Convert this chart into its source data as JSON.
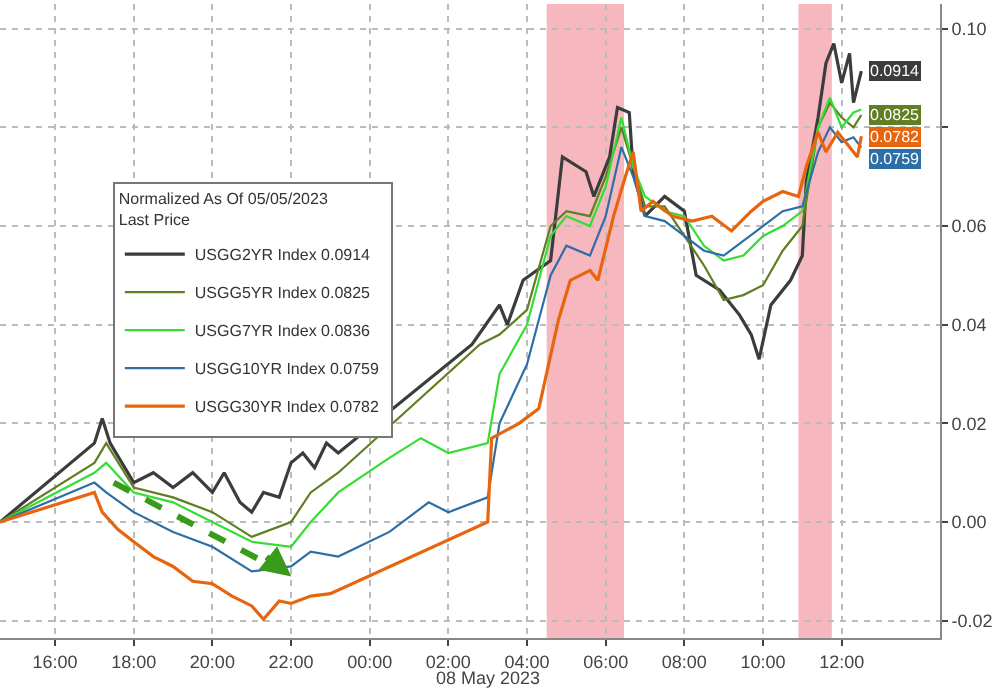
{
  "chart_data": {
    "type": "line",
    "legend_title": "Normalized As Of 05/05/2023\nLast Price",
    "annotations": [
      "08 May 2023"
    ],
    "xlim": [
      "2023-05-07T14:36",
      "2023-05-08T14:30"
    ],
    "xticks": [
      {
        "value": "2023-05-07T16:00",
        "label": "16:00"
      },
      {
        "value": "2023-05-07T18:00",
        "label": "18:00"
      },
      {
        "value": "2023-05-07T20:00",
        "label": "20:00"
      },
      {
        "value": "2023-05-07T22:00",
        "label": "22:00"
      },
      {
        "value": "2023-05-08T00:00",
        "label": "00:00"
      },
      {
        "value": "2023-05-08T02:00",
        "label": "02:00"
      },
      {
        "value": "2023-05-08T04:00",
        "label": "04:00"
      },
      {
        "value": "2023-05-08T06:00",
        "label": "06:00"
      },
      {
        "value": "2023-05-08T08:00",
        "label": "08:00"
      },
      {
        "value": "2023-05-08T10:00",
        "label": "10:00"
      },
      {
        "value": "2023-05-08T12:00",
        "label": "12:00"
      }
    ],
    "ylim": [
      -0.0235,
      0.105
    ],
    "yticks": [
      -0.02,
      {
        "value": 0,
        "label": "0.00"
      },
      0.02,
      0.04,
      0.06,
      {
        "value": 0.08,
        "label": null
      },
      {
        "value": 0.1,
        "label": "0.10"
      }
    ],
    "grid": true,
    "legend": "left",
    "marker": "none",
    "line_style": "solid",
    "bands": [
      {
        "axis": "x",
        "from": "2023-05-08T04:30",
        "to": "2023-05-08T06:28",
        "color": "#f4a6ae"
      },
      {
        "axis": "x",
        "from": "2023-05-08T10:54",
        "to": "2023-05-08T11:45",
        "color": "#f4a6ae"
      }
    ],
    "series": [
      {
        "name": "USGG2YR Index 0.0914",
        "color": "#3c3c3c",
        "x": [
          "2023-05-07T14:36",
          "2023-05-07T17:00",
          "2023-05-07T17:12",
          "2023-05-07T17:24",
          "2023-05-07T17:42",
          "2023-05-07T18:00",
          "2023-05-07T18:30",
          "2023-05-07T19:00",
          "2023-05-07T19:30",
          "2023-05-07T20:00",
          "2023-05-07T20:18",
          "2023-05-07T20:42",
          "2023-05-07T21:00",
          "2023-05-07T21:18",
          "2023-05-07T21:42",
          "2023-05-07T22:00",
          "2023-05-07T22:18",
          "2023-05-07T22:36",
          "2023-05-07T22:54",
          "2023-05-07T23:12",
          "2023-05-08T02:36",
          "2023-05-08T03:18",
          "2023-05-08T03:30",
          "2023-05-08T03:54",
          "2023-05-08T04:36",
          "2023-05-08T04:54",
          "2023-05-08T05:30",
          "2023-05-08T05:42",
          "2023-05-08T06:06",
          "2023-05-08T06:18",
          "2023-05-08T06:36",
          "2023-05-08T06:42",
          "2023-05-08T07:00",
          "2023-05-08T07:30",
          "2023-05-08T08:00",
          "2023-05-08T08:18",
          "2023-05-08T08:54",
          "2023-05-08T09:24",
          "2023-05-08T09:42",
          "2023-05-08T09:54",
          "2023-05-08T10:12",
          "2023-05-08T10:42",
          "2023-05-08T11:00",
          "2023-05-08T11:06",
          "2023-05-08T11:24",
          "2023-05-08T11:36",
          "2023-05-08T11:48",
          "2023-05-08T12:00",
          "2023-05-08T12:12",
          "2023-05-08T12:18",
          "2023-05-08T12:30"
        ],
        "values": [
          0,
          0.016,
          0.021,
          0.016,
          0.012,
          0.008,
          0.01,
          0.007,
          0.01,
          0.006,
          0.01,
          0.004,
          0.002,
          0.006,
          0.005,
          0.012,
          0.014,
          0.011,
          0.016,
          0.014,
          0.036,
          0.044,
          0.04,
          0.049,
          0.053,
          0.074,
          0.071,
          0.066,
          0.074,
          0.084,
          0.083,
          0.071,
          0.062,
          0.066,
          0.063,
          0.05,
          0.047,
          0.042,
          0.038,
          0.033,
          0.044,
          0.049,
          0.054,
          0.069,
          0.082,
          0.093,
          0.097,
          0.089,
          0.095,
          0.085,
          0.0914
        ],
        "value_labels": [
          null,
          null,
          null,
          null,
          null,
          null,
          null,
          null,
          null,
          null,
          null,
          null,
          null,
          null,
          null,
          null,
          null,
          null,
          null,
          null,
          null,
          null,
          null,
          null,
          null,
          null,
          null,
          null,
          null,
          null,
          null,
          null,
          null,
          null,
          null,
          null,
          null,
          null,
          null,
          null,
          null,
          null,
          null,
          null,
          null,
          null,
          null,
          null,
          null,
          null,
          "0.0914"
        ]
      },
      {
        "name": "USGG5YR Index 0.0825",
        "color": "#5f7f22",
        "x": [
          "2023-05-07T14:36",
          "2023-05-07T17:00",
          "2023-05-07T17:18",
          "2023-05-07T18:00",
          "2023-05-07T19:00",
          "2023-05-07T20:00",
          "2023-05-07T21:00",
          "2023-05-07T22:00",
          "2023-05-07T22:30",
          "2023-05-07T23:12",
          "2023-05-08T02:48",
          "2023-05-08T03:18",
          "2023-05-08T04:00",
          "2023-05-08T04:36",
          "2023-05-08T05:00",
          "2023-05-08T05:36",
          "2023-05-08T06:00",
          "2023-05-08T06:24",
          "2023-05-08T06:42",
          "2023-05-08T07:00",
          "2023-05-08T07:30",
          "2023-05-08T08:00",
          "2023-05-08T08:30",
          "2023-05-08T09:00",
          "2023-05-08T09:30",
          "2023-05-08T10:00",
          "2023-05-08T10:30",
          "2023-05-08T11:00",
          "2023-05-08T11:24",
          "2023-05-08T11:42",
          "2023-05-08T12:00",
          "2023-05-08T12:18",
          "2023-05-08T12:30"
        ],
        "values": [
          0,
          0.012,
          0.016,
          0.007,
          0.005,
          0.002,
          -0.003,
          0.0,
          0.006,
          0.01,
          0.036,
          0.038,
          0.043,
          0.06,
          0.063,
          0.062,
          0.07,
          0.08,
          0.072,
          0.064,
          0.064,
          0.058,
          0.052,
          0.045,
          0.046,
          0.048,
          0.055,
          0.06,
          0.08,
          0.085,
          0.082,
          0.08,
          0.0825
        ],
        "value_labels": [
          null,
          null,
          null,
          null,
          null,
          null,
          null,
          null,
          null,
          null,
          null,
          null,
          null,
          null,
          null,
          null,
          null,
          null,
          null,
          null,
          null,
          null,
          null,
          null,
          null,
          null,
          null,
          null,
          null,
          null,
          null,
          null,
          "0.0825"
        ]
      },
      {
        "name": "USGG7YR Index 0.0836",
        "color": "#33dd33",
        "x": [
          "2023-05-07T14:36",
          "2023-05-07T17:00",
          "2023-05-07T17:18",
          "2023-05-07T18:00",
          "2023-05-07T19:00",
          "2023-05-07T20:00",
          "2023-05-07T21:00",
          "2023-05-07T22:00",
          "2023-05-07T22:30",
          "2023-05-07T23:12",
          "2023-05-08T00:30",
          "2023-05-08T01:18",
          "2023-05-08T02:00",
          "2023-05-08T03:00",
          "2023-05-08T03:18",
          "2023-05-08T04:00",
          "2023-05-08T04:36",
          "2023-05-08T05:00",
          "2023-05-08T05:36",
          "2023-05-08T06:00",
          "2023-05-08T06:24",
          "2023-05-08T06:42",
          "2023-05-08T07:00",
          "2023-05-08T07:30",
          "2023-05-08T08:00",
          "2023-05-08T08:30",
          "2023-05-08T09:00",
          "2023-05-08T09:30",
          "2023-05-08T10:00",
          "2023-05-08T10:30",
          "2023-05-08T11:00",
          "2023-05-08T11:24",
          "2023-05-08T11:42",
          "2023-05-08T12:00",
          "2023-05-08T12:18",
          "2023-05-08T12:30"
        ],
        "values": [
          0,
          0.01,
          0.012,
          0.006,
          0.004,
          0.0,
          -0.004,
          -0.005,
          0.0,
          0.006,
          0.013,
          0.017,
          0.014,
          0.016,
          0.03,
          0.04,
          0.058,
          0.062,
          0.06,
          0.068,
          0.082,
          0.072,
          0.066,
          0.063,
          0.062,
          0.056,
          0.053,
          0.054,
          0.058,
          0.06,
          0.063,
          0.08,
          0.086,
          0.08,
          0.083,
          0.0836
        ]
      },
      {
        "name": "USGG10YR Index 0.0759",
        "color": "#2e6ea6",
        "x": [
          "2023-05-07T14:36",
          "2023-05-07T17:00",
          "2023-05-07T17:18",
          "2023-05-07T18:00",
          "2023-05-07T19:00",
          "2023-05-07T20:00",
          "2023-05-07T21:00",
          "2023-05-07T22:00",
          "2023-05-07T22:30",
          "2023-05-07T23:12",
          "2023-05-08T00:30",
          "2023-05-08T01:30",
          "2023-05-08T02:00",
          "2023-05-08T03:00",
          "2023-05-08T03:18",
          "2023-05-08T04:00",
          "2023-05-08T04:36",
          "2023-05-08T05:00",
          "2023-05-08T05:36",
          "2023-05-08T06:00",
          "2023-05-08T06:24",
          "2023-05-08T06:42",
          "2023-05-08T07:00",
          "2023-05-08T07:30",
          "2023-05-08T08:00",
          "2023-05-08T08:30",
          "2023-05-08T09:00",
          "2023-05-08T09:30",
          "2023-05-08T10:00",
          "2023-05-08T10:30",
          "2023-05-08T11:00",
          "2023-05-08T11:24",
          "2023-05-08T11:42",
          "2023-05-08T12:00",
          "2023-05-08T12:18",
          "2023-05-08T12:30"
        ],
        "values": [
          0,
          0.008,
          0.006,
          0.002,
          -0.002,
          -0.005,
          -0.01,
          -0.009,
          -0.006,
          -0.007,
          -0.002,
          0.004,
          0.002,
          0.005,
          0.02,
          0.032,
          0.05,
          0.056,
          0.054,
          0.062,
          0.076,
          0.07,
          0.062,
          0.061,
          0.058,
          0.055,
          0.054,
          0.057,
          0.06,
          0.063,
          0.064,
          0.075,
          0.08,
          0.077,
          0.078,
          0.0759
        ],
        "value_labels": [
          null,
          null,
          null,
          null,
          null,
          null,
          null,
          null,
          null,
          null,
          null,
          null,
          null,
          null,
          null,
          null,
          null,
          null,
          null,
          null,
          null,
          null,
          null,
          null,
          null,
          null,
          null,
          null,
          null,
          null,
          null,
          null,
          null,
          null,
          null,
          "0.0759"
        ]
      },
      {
        "name": "USGG30YR Index 0.0782",
        "color": "#e8650f",
        "x": [
          "2023-05-07T14:36",
          "2023-05-07T17:00",
          "2023-05-07T17:12",
          "2023-05-07T17:36",
          "2023-05-07T18:00",
          "2023-05-07T18:30",
          "2023-05-07T19:00",
          "2023-05-07T19:30",
          "2023-05-07T20:00",
          "2023-05-07T20:30",
          "2023-05-07T21:00",
          "2023-05-07T21:18",
          "2023-05-07T21:42",
          "2023-05-07T22:00",
          "2023-05-07T22:30",
          "2023-05-07T23:00",
          "2023-05-08T03:00",
          "2023-05-08T03:06",
          "2023-05-08T03:48",
          "2023-05-08T04:18",
          "2023-05-08T04:48",
          "2023-05-08T05:06",
          "2023-05-08T05:36",
          "2023-05-08T05:48",
          "2023-05-08T06:12",
          "2023-05-08T06:30",
          "2023-05-08T06:42",
          "2023-05-08T06:54",
          "2023-05-08T07:12",
          "2023-05-08T07:42",
          "2023-05-08T08:12",
          "2023-05-08T08:42",
          "2023-05-08T09:12",
          "2023-05-08T09:42",
          "2023-05-08T10:00",
          "2023-05-08T10:30",
          "2023-05-08T10:54",
          "2023-05-08T11:06",
          "2023-05-08T11:24",
          "2023-05-08T11:36",
          "2023-05-08T11:54",
          "2023-05-08T12:12",
          "2023-05-08T12:24",
          "2023-05-08T12:30"
        ],
        "values": [
          0,
          0.006,
          0.002,
          -0.0015,
          -0.004,
          -0.007,
          -0.009,
          -0.012,
          -0.0125,
          -0.015,
          -0.017,
          -0.0197,
          -0.016,
          -0.0165,
          -0.015,
          -0.0145,
          0.0,
          0.017,
          0.02,
          0.023,
          0.041,
          0.049,
          0.051,
          0.049,
          0.062,
          0.07,
          0.075,
          0.063,
          0.065,
          0.062,
          0.061,
          0.062,
          0.059,
          0.063,
          0.065,
          0.067,
          0.066,
          0.072,
          0.079,
          0.075,
          0.079,
          0.076,
          0.074,
          0.0782
        ],
        "value_labels": [
          null,
          null,
          null,
          null,
          null,
          null,
          null,
          null,
          null,
          null,
          null,
          null,
          null,
          null,
          null,
          null,
          null,
          null,
          null,
          null,
          null,
          null,
          null,
          null,
          null,
          null,
          null,
          null,
          null,
          null,
          null,
          null,
          null,
          null,
          null,
          null,
          null,
          null,
          null,
          null,
          null,
          null,
          null,
          "0.0782"
        ]
      }
    ]
  }
}
